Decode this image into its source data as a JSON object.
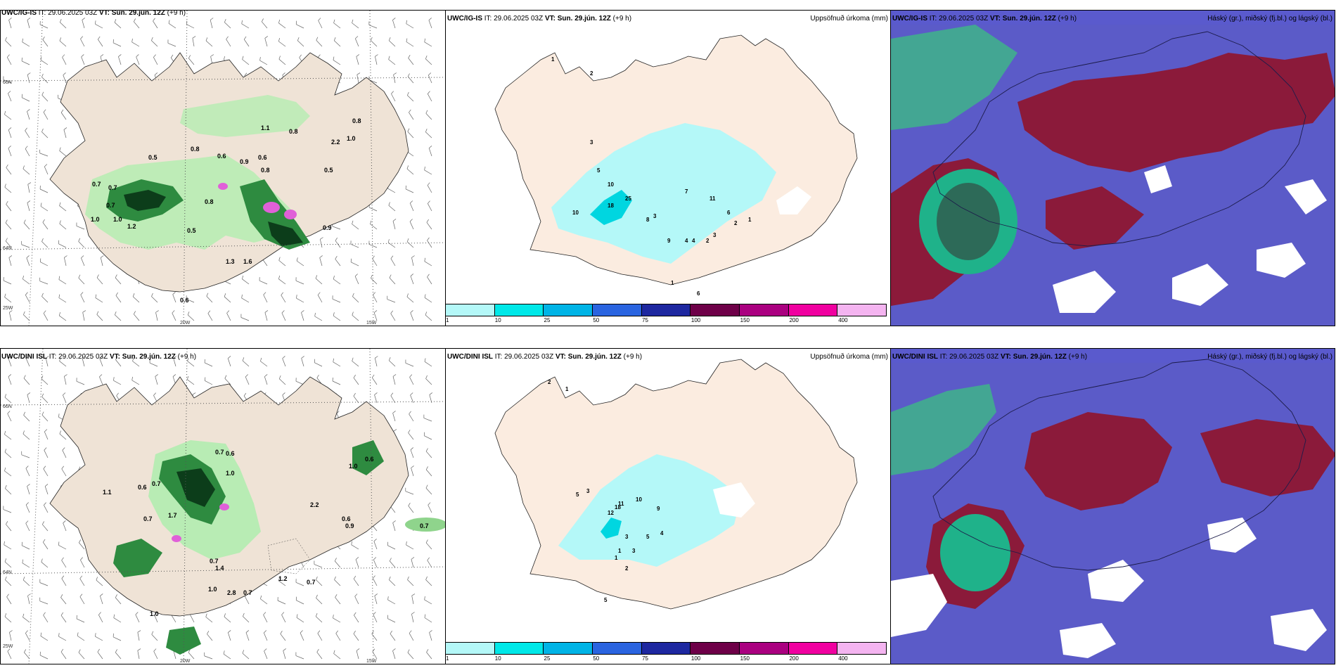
{
  "panels": [
    {
      "model": "UWC/IG-IS",
      "it": "IT: 29.06.2025 03Z",
      "vt": "VT: Sun. 29.jún. 12Z",
      "lead": "(+9 h)",
      "right": ""
    },
    {
      "model": "UWC/IG-IS",
      "it": "IT: 29.06.2025 03Z",
      "vt": "VT: Sun. 29.jún. 12Z",
      "lead": "(+9 h)",
      "right": "Uppsöfnuð úrkoma (mm)"
    },
    {
      "model": "UWC/IG-IS",
      "it": "IT: 29.06.2025 03Z",
      "vt": "VT: Sun. 29.jún. 12Z",
      "lead": "(+9 h)",
      "right": "Háský (gr.), miðský (fj.bl.) og lágský (bl.)"
    },
    {
      "model": "UWC/DINI ISL",
      "it": "IT: 29.06.2025 03Z",
      "vt": "VT: Sun. 29.jún. 12Z",
      "lead": "(+9 h)",
      "right": ""
    },
    {
      "model": "UWC/DINI ISL",
      "it": "IT: 29.06.2025 03Z",
      "vt": "VT: Sun. 29.jún. 12Z",
      "lead": "(+9 h)",
      "right": "Uppsöfnuð úrkoma (mm)"
    },
    {
      "model": "UWC/DINI ISL",
      "it": "IT: 29.06.2025 03Z",
      "vt": "VT: Sun. 29.jún. 12Z",
      "lead": "(+9 h)",
      "right": "Háský (gr.), miðský (fj.bl.) og lágský (bl.)"
    }
  ],
  "axes": {
    "lat1": "66N",
    "lat2": "64N",
    "lon1": "25W",
    "lon2": "20W",
    "lon3": "15W"
  },
  "colorbar": {
    "colors": [
      "#b4f8f8",
      "#00e8e8",
      "#00b4e6",
      "#2a64e0",
      "#1e28a0",
      "#6e0048",
      "#aa0080",
      "#f000a0",
      "#f4b4f0"
    ],
    "ticks": [
      "1",
      "10",
      "25",
      "50",
      "75",
      "100",
      "150",
      "200",
      "400"
    ]
  },
  "top_precip_labels": [
    "0.5",
    "0.7",
    "0.7",
    "0.8",
    "0.6",
    "0.9",
    "0.6",
    "0.8",
    "0.5",
    "1.0",
    "1.2",
    "1.0",
    "0.7",
    "0.8",
    "0.5",
    "1.3",
    "1.6",
    "0.9",
    "0.8",
    "1.0",
    "2.2",
    "1.1",
    "0.8",
    "0.6"
  ],
  "bottom_precip_labels": [
    "0.7",
    "0.6",
    "1.0",
    "1.1",
    "0.6",
    "0.7",
    "1.7",
    "0.7",
    "1.0",
    "0.6",
    "0.9",
    "1.4",
    "0.7",
    "1.0",
    "2.8",
    "0.7",
    "1.2",
    "0.7",
    "0.6",
    "0.7",
    "2.2",
    "1.0"
  ],
  "top_accum_labels": [
    "1",
    "2",
    "3",
    "5",
    "10",
    "25",
    "18",
    "10",
    "8",
    "3",
    "4",
    "9",
    "7",
    "11",
    "6",
    "2",
    "1",
    "4",
    "2",
    "3",
    "1",
    "6"
  ],
  "bottom_accum_labels": [
    "2",
    "1",
    "5",
    "3",
    "11",
    "18",
    "12",
    "10",
    "9",
    "5",
    "3",
    "4",
    "1",
    "3",
    "2",
    "1",
    "5"
  ]
}
